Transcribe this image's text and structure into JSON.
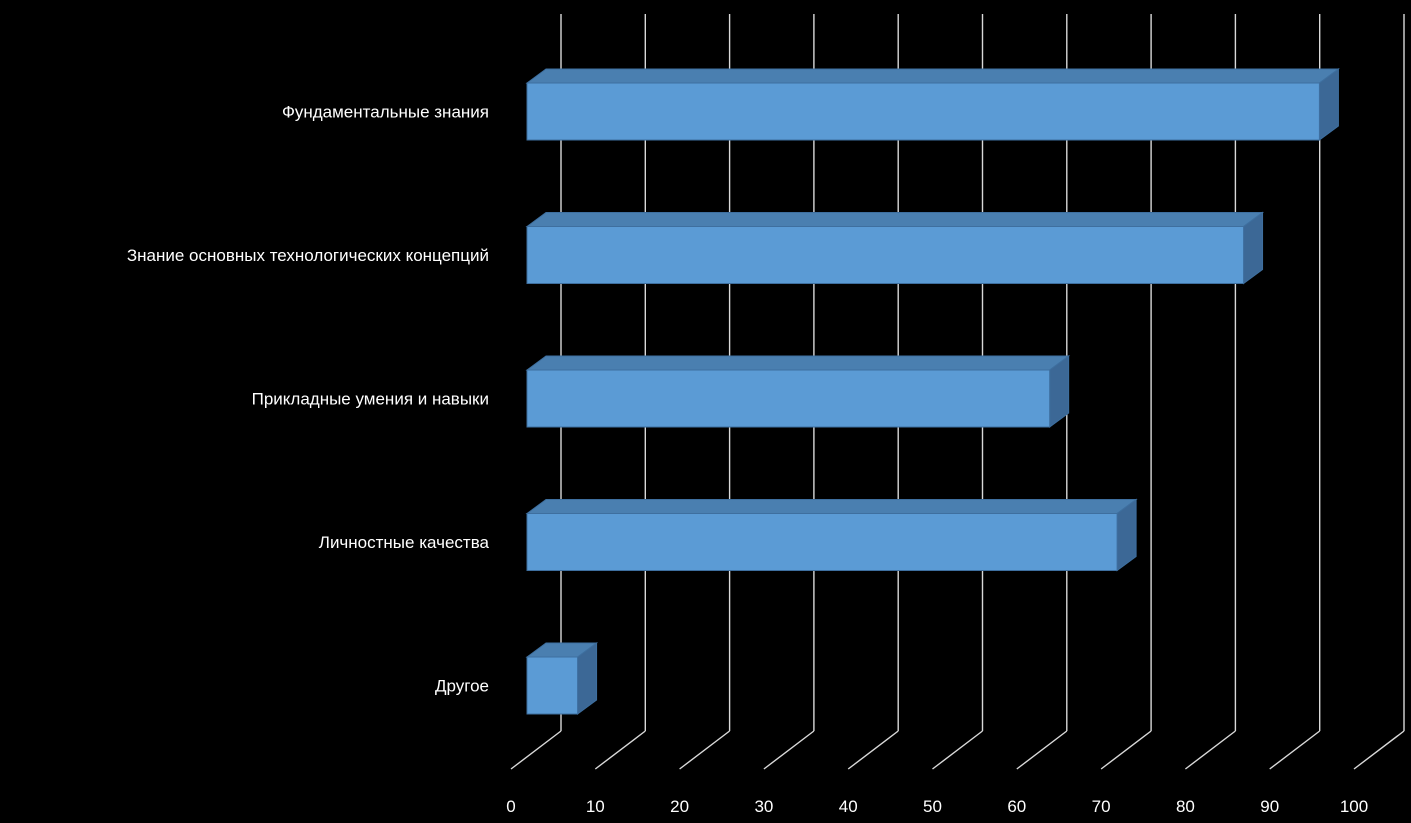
{
  "chart_data": {
    "type": "bar",
    "orientation": "horizontal",
    "three_d": true,
    "categories": [
      "Фундаментальные знания",
      "Знание основных технологических концепций",
      "Прикладные умения и навыки",
      "Личностные качества",
      "Другое"
    ],
    "values": [
      94,
      85,
      62,
      70,
      6
    ],
    "xlim": [
      0,
      100
    ],
    "x_ticks": [
      "0",
      "10",
      "20",
      "30",
      "40",
      "50",
      "60",
      "70",
      "80",
      "90",
      "100"
    ],
    "grid": true,
    "legend": "none",
    "title": "",
    "xlabel": "",
    "ylabel": ""
  },
  "colors": {
    "background": "#000000",
    "bar_front": "#5b9bd5",
    "bar_top": "#4a7fb0",
    "bar_side": "#3c6896",
    "bar_edge": "#3e6f9f",
    "grid": "#d9d9d9",
    "text": "#ffffff"
  }
}
